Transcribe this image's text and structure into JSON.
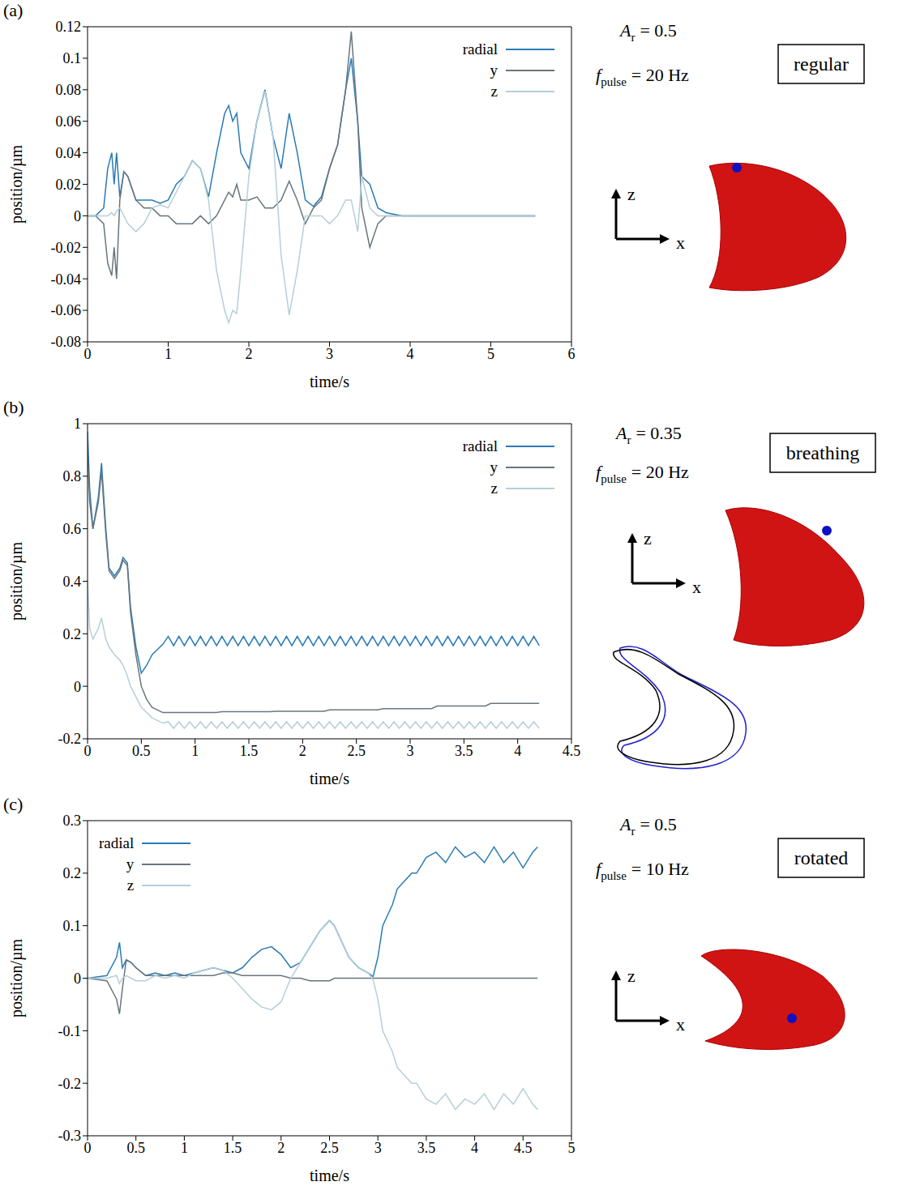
{
  "chart_data": [
    {
      "type": "line",
      "panel_label": "(a)",
      "mode_label": "regular",
      "parameters": [
        {
          "symbol": "A",
          "subscript": "r",
          "text": "= 0.5"
        },
        {
          "symbol": "f",
          "subscript": "pulse",
          "text": "= 20 Hz"
        }
      ],
      "frame_axes": {
        "vertical": "z",
        "horizontal": "x"
      },
      "xlabel": "time/s",
      "ylabel": "position/µm",
      "legend": "upper right",
      "xlim": [
        0,
        6
      ],
      "xticks": [
        0,
        1,
        2,
        3,
        4,
        5,
        6
      ],
      "ylim": [
        -0.08,
        0.12
      ],
      "yticks": [
        -0.08,
        -0.06,
        -0.04,
        -0.02,
        0,
        0.02,
        0.04,
        0.06,
        0.08,
        0.1,
        0.12
      ],
      "x": [
        0,
        0.1,
        0.2,
        0.25,
        0.3,
        0.33,
        0.36,
        0.4,
        0.45,
        0.5,
        0.6,
        0.7,
        0.8,
        0.9,
        1.0,
        1.1,
        1.2,
        1.3,
        1.4,
        1.5,
        1.6,
        1.7,
        1.75,
        1.8,
        1.85,
        1.9,
        2.0,
        2.1,
        2.2,
        2.3,
        2.4,
        2.5,
        2.6,
        2.7,
        2.8,
        2.9,
        3.0,
        3.1,
        3.2,
        3.27,
        3.35,
        3.4,
        3.5,
        3.6,
        3.7,
        3.8,
        3.9,
        4.0,
        5.55
      ],
      "series": [
        {
          "name": "radial",
          "color": "#2a7bb5",
          "values": [
            0,
            0,
            0.005,
            0.03,
            0.04,
            0.02,
            0.04,
            0.012,
            0.028,
            0.025,
            0.01,
            0.01,
            0.01,
            0.008,
            0.01,
            0.02,
            0.025,
            0.035,
            0.03,
            0.012,
            0.04,
            0.065,
            0.07,
            0.06,
            0.065,
            0.04,
            0.03,
            0.06,
            0.08,
            0.05,
            0.03,
            0.065,
            0.04,
            0.01,
            0.006,
            0.012,
            0.03,
            0.045,
            0.08,
            0.1,
            0.06,
            0.025,
            0.02,
            0.005,
            0.002,
            0.001,
            0,
            0,
            0
          ]
        },
        {
          "name": "y",
          "color": "#69757d",
          "values": [
            0,
            0,
            -0.005,
            -0.03,
            -0.038,
            -0.02,
            -0.04,
            0.01,
            0.028,
            0.025,
            0.01,
            0.005,
            0.005,
            0,
            0,
            -0.005,
            -0.005,
            -0.005,
            0,
            -0.005,
            0,
            0.01,
            0.015,
            0.012,
            0.02,
            0.01,
            0.01,
            0.012,
            0.005,
            0.005,
            0.01,
            0.022,
            0.01,
            -0.005,
            0.005,
            0.01,
            0.03,
            0.045,
            0.08,
            0.117,
            0.06,
            0.005,
            -0.02,
            -0.005,
            0,
            0,
            0,
            0,
            0
          ]
        },
        {
          "name": "z",
          "color": "#b5cfd8",
          "values": [
            0,
            0,
            0,
            0,
            0.002,
            0,
            0.003,
            0.005,
            0,
            -0.005,
            -0.01,
            -0.005,
            0.005,
            0.007,
            0.005,
            0.015,
            0.025,
            0.035,
            0.03,
            0.01,
            -0.035,
            -0.06,
            -0.068,
            -0.06,
            -0.062,
            -0.035,
            0.025,
            0.06,
            0.079,
            0.05,
            -0.025,
            -0.063,
            -0.035,
            0,
            0,
            0,
            -0.005,
            0,
            0.01,
            0.01,
            -0.01,
            0.025,
            0.005,
            0,
            0,
            0,
            0,
            0,
            0
          ]
        }
      ]
    },
    {
      "type": "line",
      "panel_label": "(b)",
      "mode_label": "breathing",
      "parameters": [
        {
          "symbol": "A",
          "subscript": "r",
          "text": "= 0.35"
        },
        {
          "symbol": "f",
          "subscript": "pulse",
          "text": "= 20 Hz"
        }
      ],
      "frame_axes": {
        "vertical": "z",
        "horizontal": "x"
      },
      "xlabel": "time/s",
      "ylabel": "position/µm",
      "legend": "upper right",
      "xlim": [
        0,
        4.5
      ],
      "xticks": [
        0,
        0.5,
        1,
        1.5,
        2,
        2.5,
        3,
        3.5,
        4,
        4.5
      ],
      "ylim": [
        -0.2,
        1
      ],
      "yticks": [
        -0.2,
        0,
        0.2,
        0.4,
        0.6,
        0.8,
        1
      ],
      "x": [
        0,
        0.02,
        0.05,
        0.1,
        0.13,
        0.17,
        0.2,
        0.25,
        0.3,
        0.33,
        0.37,
        0.4,
        0.45,
        0.5,
        0.55,
        0.6,
        0.65,
        0.7,
        0.75,
        0.8,
        0.85,
        0.9,
        0.95,
        1,
        1.05,
        1.1,
        1.15,
        1.2,
        1.25,
        1.3,
        1.35,
        1.4,
        1.45,
        1.5,
        1.55,
        1.6,
        1.65,
        1.7,
        1.75,
        1.8,
        1.85,
        1.9,
        1.95,
        2,
        2.05,
        2.1,
        2.15,
        2.2,
        2.25,
        2.3,
        2.35,
        2.4,
        2.45,
        2.5,
        2.55,
        2.6,
        2.65,
        2.7,
        2.75,
        2.8,
        2.85,
        2.9,
        2.95,
        3,
        3.05,
        3.1,
        3.15,
        3.2,
        3.25,
        3.3,
        3.35,
        3.4,
        3.45,
        3.5,
        3.55,
        3.6,
        3.65,
        3.7,
        3.75,
        3.8,
        3.85,
        3.9,
        3.95,
        4,
        4.05,
        4.1,
        4.15,
        4.2
      ],
      "series": [
        {
          "name": "radial",
          "color": "#2a7bb5",
          "values": [
            0.97,
            0.75,
            0.6,
            0.72,
            0.85,
            0.6,
            0.45,
            0.42,
            0.45,
            0.49,
            0.47,
            0.3,
            0.15,
            0.05,
            0.08,
            0.12,
            0.14,
            0.16,
            0.19,
            0.155,
            0.19,
            0.155,
            0.19,
            0.155,
            0.19,
            0.155,
            0.19,
            0.155,
            0.19,
            0.155,
            0.19,
            0.155,
            0.19,
            0.155,
            0.19,
            0.155,
            0.19,
            0.155,
            0.19,
            0.155,
            0.19,
            0.155,
            0.19,
            0.155,
            0.19,
            0.155,
            0.19,
            0.155,
            0.19,
            0.155,
            0.19,
            0.155,
            0.19,
            0.155,
            0.19,
            0.155,
            0.19,
            0.155,
            0.19,
            0.155,
            0.19,
            0.155,
            0.19,
            0.155,
            0.19,
            0.155,
            0.19,
            0.155,
            0.19,
            0.155,
            0.19,
            0.155,
            0.19,
            0.155,
            0.19,
            0.155,
            0.19,
            0.155,
            0.19,
            0.155,
            0.19,
            0.155,
            0.19,
            0.155,
            0.19,
            0.155,
            0.19,
            0.155
          ]
        },
        {
          "name": "y",
          "color": "#69757d",
          "values": [
            0.9,
            0.7,
            0.6,
            0.7,
            0.82,
            0.58,
            0.44,
            0.41,
            0.44,
            0.48,
            0.46,
            0.28,
            0.12,
            0,
            -0.05,
            -0.08,
            -0.09,
            -0.1,
            -0.1,
            -0.1,
            -0.1,
            -0.1,
            -0.1,
            -0.1,
            -0.1,
            -0.1,
            -0.1,
            -0.1,
            -0.097,
            -0.097,
            -0.097,
            -0.097,
            -0.097,
            -0.097,
            -0.097,
            -0.097,
            -0.097,
            -0.097,
            -0.095,
            -0.095,
            -0.095,
            -0.095,
            -0.095,
            -0.095,
            -0.095,
            -0.095,
            -0.095,
            -0.095,
            -0.09,
            -0.09,
            -0.09,
            -0.09,
            -0.09,
            -0.09,
            -0.09,
            -0.09,
            -0.09,
            -0.09,
            -0.085,
            -0.085,
            -0.085,
            -0.085,
            -0.085,
            -0.085,
            -0.085,
            -0.085,
            -0.085,
            -0.085,
            -0.075,
            -0.075,
            -0.075,
            -0.075,
            -0.075,
            -0.075,
            -0.075,
            -0.075,
            -0.075,
            -0.075,
            -0.065,
            -0.065,
            -0.065,
            -0.065,
            -0.065,
            -0.065,
            -0.065,
            -0.065,
            -0.065,
            -0.065
          ]
        },
        {
          "name": "z",
          "color": "#b5cfd8",
          "values": [
            0.4,
            0.22,
            0.18,
            0.22,
            0.26,
            0.18,
            0.15,
            0.12,
            0.1,
            0.08,
            0.04,
            0,
            -0.04,
            -0.08,
            -0.1,
            -0.12,
            -0.13,
            -0.14,
            -0.135,
            -0.16,
            -0.135,
            -0.16,
            -0.135,
            -0.16,
            -0.135,
            -0.16,
            -0.135,
            -0.16,
            -0.135,
            -0.16,
            -0.135,
            -0.16,
            -0.135,
            -0.16,
            -0.135,
            -0.16,
            -0.135,
            -0.16,
            -0.135,
            -0.16,
            -0.135,
            -0.16,
            -0.135,
            -0.16,
            -0.135,
            -0.16,
            -0.135,
            -0.16,
            -0.135,
            -0.16,
            -0.135,
            -0.16,
            -0.135,
            -0.16,
            -0.135,
            -0.16,
            -0.135,
            -0.16,
            -0.135,
            -0.16,
            -0.135,
            -0.16,
            -0.135,
            -0.16,
            -0.135,
            -0.16,
            -0.135,
            -0.16,
            -0.135,
            -0.16,
            -0.135,
            -0.16,
            -0.135,
            -0.16,
            -0.135,
            -0.16,
            -0.135,
            -0.16,
            -0.135,
            -0.16,
            -0.135,
            -0.16,
            -0.135,
            -0.16,
            -0.135,
            -0.16,
            -0.135,
            -0.16
          ]
        }
      ]
    },
    {
      "type": "line",
      "panel_label": "(c)",
      "mode_label": "rotated",
      "parameters": [
        {
          "symbol": "A",
          "subscript": "r",
          "text": "= 0.5"
        },
        {
          "symbol": "f",
          "subscript": "pulse",
          "text": "= 10 Hz"
        }
      ],
      "frame_axes": {
        "vertical": "z",
        "horizontal": "x"
      },
      "xlabel": "time/s",
      "ylabel": "position/µm",
      "legend": "upper left",
      "xlim": [
        0,
        5
      ],
      "xticks": [
        0,
        0.5,
        1,
        1.5,
        2,
        2.5,
        3,
        3.5,
        4,
        4.5,
        5
      ],
      "ylim": [
        -0.3,
        0.3
      ],
      "yticks": [
        -0.3,
        -0.2,
        -0.1,
        0,
        0.1,
        0.2,
        0.3
      ],
      "x": [
        0,
        0.2,
        0.3,
        0.33,
        0.36,
        0.4,
        0.45,
        0.5,
        0.6,
        0.7,
        0.8,
        0.9,
        1.0,
        1.1,
        1.2,
        1.3,
        1.4,
        1.5,
        1.6,
        1.7,
        1.8,
        1.9,
        2.0,
        2.1,
        2.2,
        2.3,
        2.4,
        2.5,
        2.55,
        2.6,
        2.7,
        2.8,
        2.9,
        2.95,
        3.0,
        3.05,
        3.1,
        3.15,
        3.2,
        3.25,
        3.3,
        3.35,
        3.4,
        3.5,
        3.6,
        3.7,
        3.8,
        3.9,
        4.0,
        4.1,
        4.2,
        4.3,
        4.4,
        4.5,
        4.6,
        4.65
      ],
      "series": [
        {
          "name": "radial",
          "color": "#2a7bb5",
          "values": [
            0,
            0.005,
            0.04,
            0.068,
            0.02,
            0.035,
            0.03,
            0.02,
            0.005,
            0.01,
            0.005,
            0.01,
            0.005,
            0.01,
            0.015,
            0.02,
            0.015,
            0.01,
            0.02,
            0.04,
            0.055,
            0.06,
            0.045,
            0.02,
            0.03,
            0.06,
            0.09,
            0.11,
            0.1,
            0.08,
            0.04,
            0.02,
            0.01,
            0.003,
            0.04,
            0.1,
            0.12,
            0.14,
            0.17,
            0.18,
            0.19,
            0.2,
            0.2,
            0.23,
            0.24,
            0.22,
            0.25,
            0.23,
            0.24,
            0.22,
            0.25,
            0.22,
            0.24,
            0.21,
            0.24,
            0.25
          ]
        },
        {
          "name": "y",
          "color": "#69757d",
          "values": [
            0,
            -0.005,
            -0.04,
            -0.068,
            -0.02,
            0.035,
            0.03,
            0.02,
            0.005,
            0.005,
            0.005,
            0.005,
            0.005,
            0.005,
            0.005,
            0.005,
            0.01,
            0.01,
            0.005,
            0.005,
            0.005,
            0.005,
            0.005,
            0,
            0,
            -0.005,
            -0.005,
            -0.005,
            0,
            0,
            0,
            0,
            0,
            0,
            0,
            0,
            0,
            0,
            0,
            0,
            0,
            0,
            0,
            0,
            0,
            0,
            0,
            0,
            0,
            0,
            0,
            0,
            0,
            0,
            0,
            0
          ]
        },
        {
          "name": "z",
          "color": "#b5cfd8",
          "values": [
            0,
            0,
            0.005,
            -0.01,
            0,
            0.005,
            0,
            -0.005,
            -0.005,
            0.005,
            0,
            0.005,
            0,
            0.01,
            0.015,
            0.02,
            0.015,
            0,
            -0.02,
            -0.04,
            -0.055,
            -0.06,
            -0.045,
            0,
            0.03,
            0.06,
            0.09,
            0.11,
            0.1,
            0.08,
            0.04,
            0.02,
            0.01,
            -0.003,
            -0.04,
            -0.1,
            -0.12,
            -0.14,
            -0.17,
            -0.18,
            -0.19,
            -0.2,
            -0.2,
            -0.23,
            -0.24,
            -0.22,
            -0.25,
            -0.23,
            -0.24,
            -0.22,
            -0.25,
            -0.22,
            -0.24,
            -0.21,
            -0.24,
            -0.25
          ]
        }
      ]
    }
  ]
}
